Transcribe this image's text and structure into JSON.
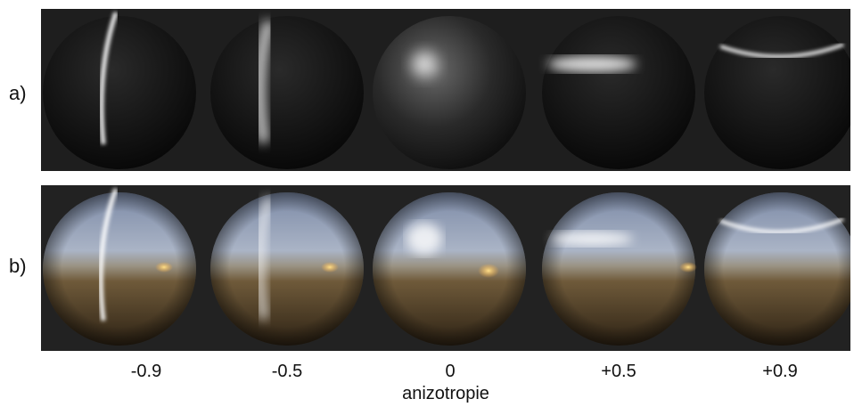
{
  "rows": {
    "a_label": "a)",
    "b_label": "b)"
  },
  "ticks": [
    "-0.9",
    "-0.5",
    "0",
    "+0.5",
    "+0.9"
  ],
  "axis_title": "anizotropie"
}
